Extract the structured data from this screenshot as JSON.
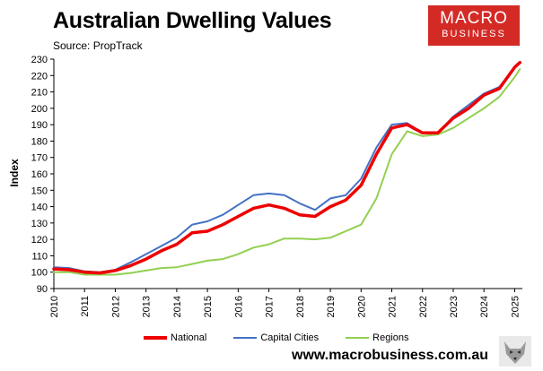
{
  "header": {
    "title": "Australian Dwelling Values",
    "source": "Source: PropTrack"
  },
  "logo": {
    "line1": "MACRO",
    "line2": "BUSINESS"
  },
  "footer": {
    "url": "www.macrobusiness.com.au"
  },
  "colors": {
    "national": "#ee0000",
    "capital": "#4472c4",
    "regions": "#92d050",
    "logo_bg": "#d42a26"
  },
  "chart_data": {
    "type": "line",
    "title": "Australian Dwelling Values",
    "xlabel": "",
    "ylabel": "Index",
    "ylim": [
      90,
      230
    ],
    "xlim": [
      2010,
      2025.25
    ],
    "yticks": [
      90,
      100,
      110,
      120,
      130,
      140,
      150,
      160,
      170,
      180,
      190,
      200,
      210,
      220,
      230
    ],
    "xticks": [
      "2010",
      "2011",
      "2012",
      "2013",
      "2014",
      "2015",
      "2016",
      "2017",
      "2018",
      "2019",
      "2020",
      "2021",
      "2022",
      "2023",
      "2024",
      "2025"
    ],
    "grid": false,
    "legend": "bottom",
    "series": [
      {
        "name": "National",
        "x": [
          2010,
          2010.5,
          2011,
          2011.5,
          2012,
          2012.5,
          2013,
          2013.5,
          2014,
          2014.5,
          2015,
          2015.5,
          2016,
          2016.5,
          2017,
          2017.5,
          2018,
          2018.5,
          2019,
          2019.5,
          2020,
          2020.5,
          2021,
          2021.5,
          2022,
          2022.5,
          2023,
          2023.5,
          2024,
          2024.5,
          2025,
          2025.17
        ],
        "values": [
          102,
          101.5,
          100,
          99.5,
          101,
          104,
          108,
          113,
          117,
          124,
          125,
          129,
          134,
          139,
          141,
          139,
          135,
          134,
          140,
          144,
          153,
          172,
          188,
          190,
          185,
          185,
          194,
          200,
          208,
          212,
          225,
          228
        ]
      },
      {
        "name": "Capital Cities",
        "x": [
          2010,
          2010.5,
          2011,
          2011.5,
          2012,
          2012.5,
          2013,
          2013.5,
          2014,
          2014.5,
          2015,
          2015.5,
          2016,
          2016.5,
          2017,
          2017.5,
          2018,
          2018.5,
          2019,
          2019.5,
          2020,
          2020.5,
          2021,
          2021.5,
          2022,
          2022.5,
          2023,
          2023.5,
          2024,
          2024.5,
          2025,
          2025.17
        ],
        "values": [
          103,
          102.5,
          100.5,
          100,
          101.5,
          106,
          111,
          116,
          121,
          129,
          131,
          135,
          141,
          147,
          148,
          147,
          142,
          138,
          145,
          147,
          157,
          176,
          190,
          191,
          185,
          185,
          195,
          202,
          209,
          213,
          225,
          228
        ]
      },
      {
        "name": "Regions",
        "x": [
          2010,
          2010.5,
          2011,
          2011.5,
          2012,
          2012.5,
          2013,
          2013.5,
          2014,
          2014.5,
          2015,
          2015.5,
          2016,
          2016.5,
          2017,
          2017.5,
          2018,
          2018.5,
          2019,
          2019.5,
          2020,
          2020.5,
          2021,
          2021.5,
          2022,
          2022.5,
          2023,
          2023.5,
          2024,
          2024.5,
          2025,
          2025.17
        ],
        "values": [
          100,
          100,
          98.5,
          98.5,
          98.5,
          99.5,
          101,
          102.5,
          103,
          105,
          107,
          108,
          111,
          115,
          117,
          120.5,
          120.5,
          120,
          121,
          125,
          129,
          145,
          172,
          186,
          183,
          184,
          188,
          194,
          200,
          207,
          219,
          224
        ]
      }
    ]
  }
}
